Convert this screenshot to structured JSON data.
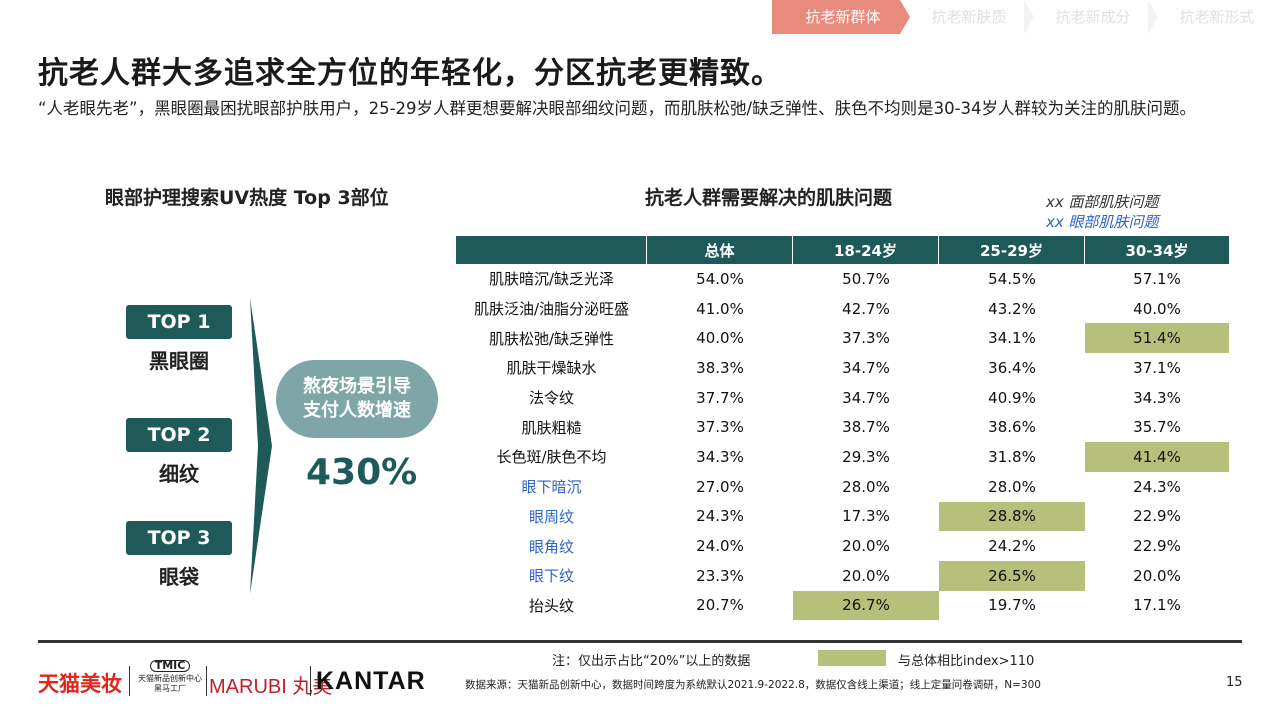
{
  "nav": {
    "tabs": [
      {
        "label": "抗老新群体",
        "active": true
      },
      {
        "label": "抗老新肤质",
        "active": false
      },
      {
        "label": "抗老新成分",
        "active": false
      },
      {
        "label": "抗老新形式",
        "active": false
      }
    ]
  },
  "title": "抗老人群大多追求全方位的年轻化，分区抗老更精致。",
  "subtitle": "“人老眼先老”，黑眼圈最困扰眼部护肤用户，25-29岁人群更想要解决眼部细纹问题，而肌肤松弛/缺乏弹性、肤色不均则是30-34岁人群较为关注的肌肤问题。",
  "left": {
    "heading": "眼部护理搜索UV热度 Top 3部位",
    "tops": [
      {
        "badge": "TOP 1",
        "label": "黑眼圈"
      },
      {
        "badge": "TOP 2",
        "label": "细纹"
      },
      {
        "badge": "TOP 3",
        "label": "眼袋"
      }
    ],
    "pill_line1": "熬夜场景引导",
    "pill_line2": "支付人数增速",
    "big_value": "430%"
  },
  "right": {
    "heading": "抗老人群需要解决的肌肤问题",
    "legend_face": "xx 面部肌肤问题",
    "legend_eye": "xx 眼部肌肤问题",
    "columns": [
      "",
      "总体",
      "18-24岁",
      "25-29岁",
      "30-34岁"
    ],
    "rows": [
      {
        "label": "肌肤暗沉/缺乏光泽",
        "type": "face",
        "values": [
          "54.0%",
          "50.7%",
          "54.5%",
          "57.1%"
        ],
        "hl": [
          false,
          false,
          false,
          false
        ]
      },
      {
        "label": "肌肤泛油/油脂分泌旺盛",
        "type": "face",
        "values": [
          "41.0%",
          "42.7%",
          "43.2%",
          "40.0%"
        ],
        "hl": [
          false,
          false,
          false,
          false
        ]
      },
      {
        "label": "肌肤松弛/缺乏弹性",
        "type": "face",
        "values": [
          "40.0%",
          "37.3%",
          "34.1%",
          "51.4%"
        ],
        "hl": [
          false,
          false,
          false,
          true
        ]
      },
      {
        "label": "肌肤干燥缺水",
        "type": "face",
        "values": [
          "38.3%",
          "34.7%",
          "36.4%",
          "37.1%"
        ],
        "hl": [
          false,
          false,
          false,
          false
        ]
      },
      {
        "label": "法令纹",
        "type": "face",
        "values": [
          "37.7%",
          "34.7%",
          "40.9%",
          "34.3%"
        ],
        "hl": [
          false,
          false,
          false,
          false
        ]
      },
      {
        "label": "肌肤粗糙",
        "type": "face",
        "values": [
          "37.3%",
          "38.7%",
          "38.6%",
          "35.7%"
        ],
        "hl": [
          false,
          false,
          false,
          false
        ]
      },
      {
        "label": "长色斑/肤色不均",
        "type": "face",
        "values": [
          "34.3%",
          "29.3%",
          "31.8%",
          "41.4%"
        ],
        "hl": [
          false,
          false,
          false,
          true
        ]
      },
      {
        "label": "眼下暗沉",
        "type": "eye",
        "values": [
          "27.0%",
          "28.0%",
          "28.0%",
          "24.3%"
        ],
        "hl": [
          false,
          false,
          false,
          false
        ]
      },
      {
        "label": "眼周纹",
        "type": "eye",
        "values": [
          "24.3%",
          "17.3%",
          "28.8%",
          "22.9%"
        ],
        "hl": [
          false,
          false,
          true,
          false
        ]
      },
      {
        "label": "眼角纹",
        "type": "eye",
        "values": [
          "24.0%",
          "20.0%",
          "24.2%",
          "22.9%"
        ],
        "hl": [
          false,
          false,
          false,
          false
        ]
      },
      {
        "label": "眼下纹",
        "type": "eye",
        "values": [
          "23.3%",
          "20.0%",
          "26.5%",
          "20.0%"
        ],
        "hl": [
          false,
          false,
          true,
          false
        ]
      },
      {
        "label": "抬头纹",
        "type": "face",
        "values": [
          "20.7%",
          "26.7%",
          "19.7%",
          "17.1%"
        ],
        "hl": [
          false,
          true,
          false,
          false
        ]
      }
    ]
  },
  "footer": {
    "note": "注：仅出示占比“20%”以上的数据",
    "highlight_legend": "与总体相比index>110",
    "source": "数据来源：天猫新品创新中心，数据时间跨度为系统默认2021.9-2022.8，数据仅含线上渠道；线上定量问卷调研，N=300",
    "page": "15",
    "logo_tmall": "天猫美妆",
    "logo_tmic_mark": "TMIC",
    "logo_tmic_line1": "天猫新品创新中心",
    "logo_tmic_line2": "黑马工厂",
    "logo_marubi": "MARUBI 丸美",
    "logo_kantar": "KANTAR"
  },
  "colors": {
    "accent_teal": "#1f5a5a",
    "pill_teal": "#7fa6a6",
    "highlight": "#b7c07a",
    "eye_text": "#2e63c8",
    "nav_active": "#e88a7c"
  }
}
